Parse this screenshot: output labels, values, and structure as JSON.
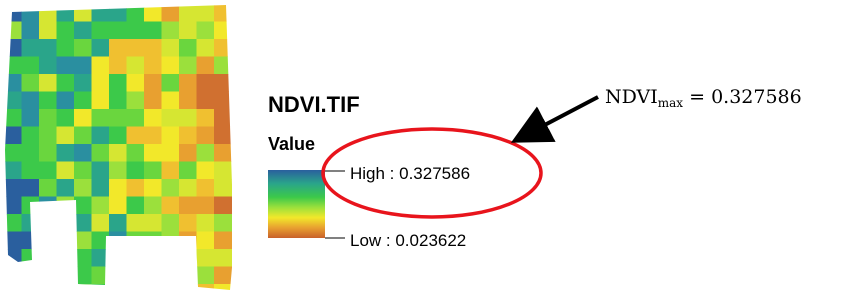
{
  "legend": {
    "title": "NDVI.TIF",
    "field": "Value",
    "high": "High : 0.327586",
    "low": "Low : 0.023622"
  },
  "annotation": {
    "base": "NDVI",
    "subscript": "max",
    "rest": " = 0.327586"
  }
}
